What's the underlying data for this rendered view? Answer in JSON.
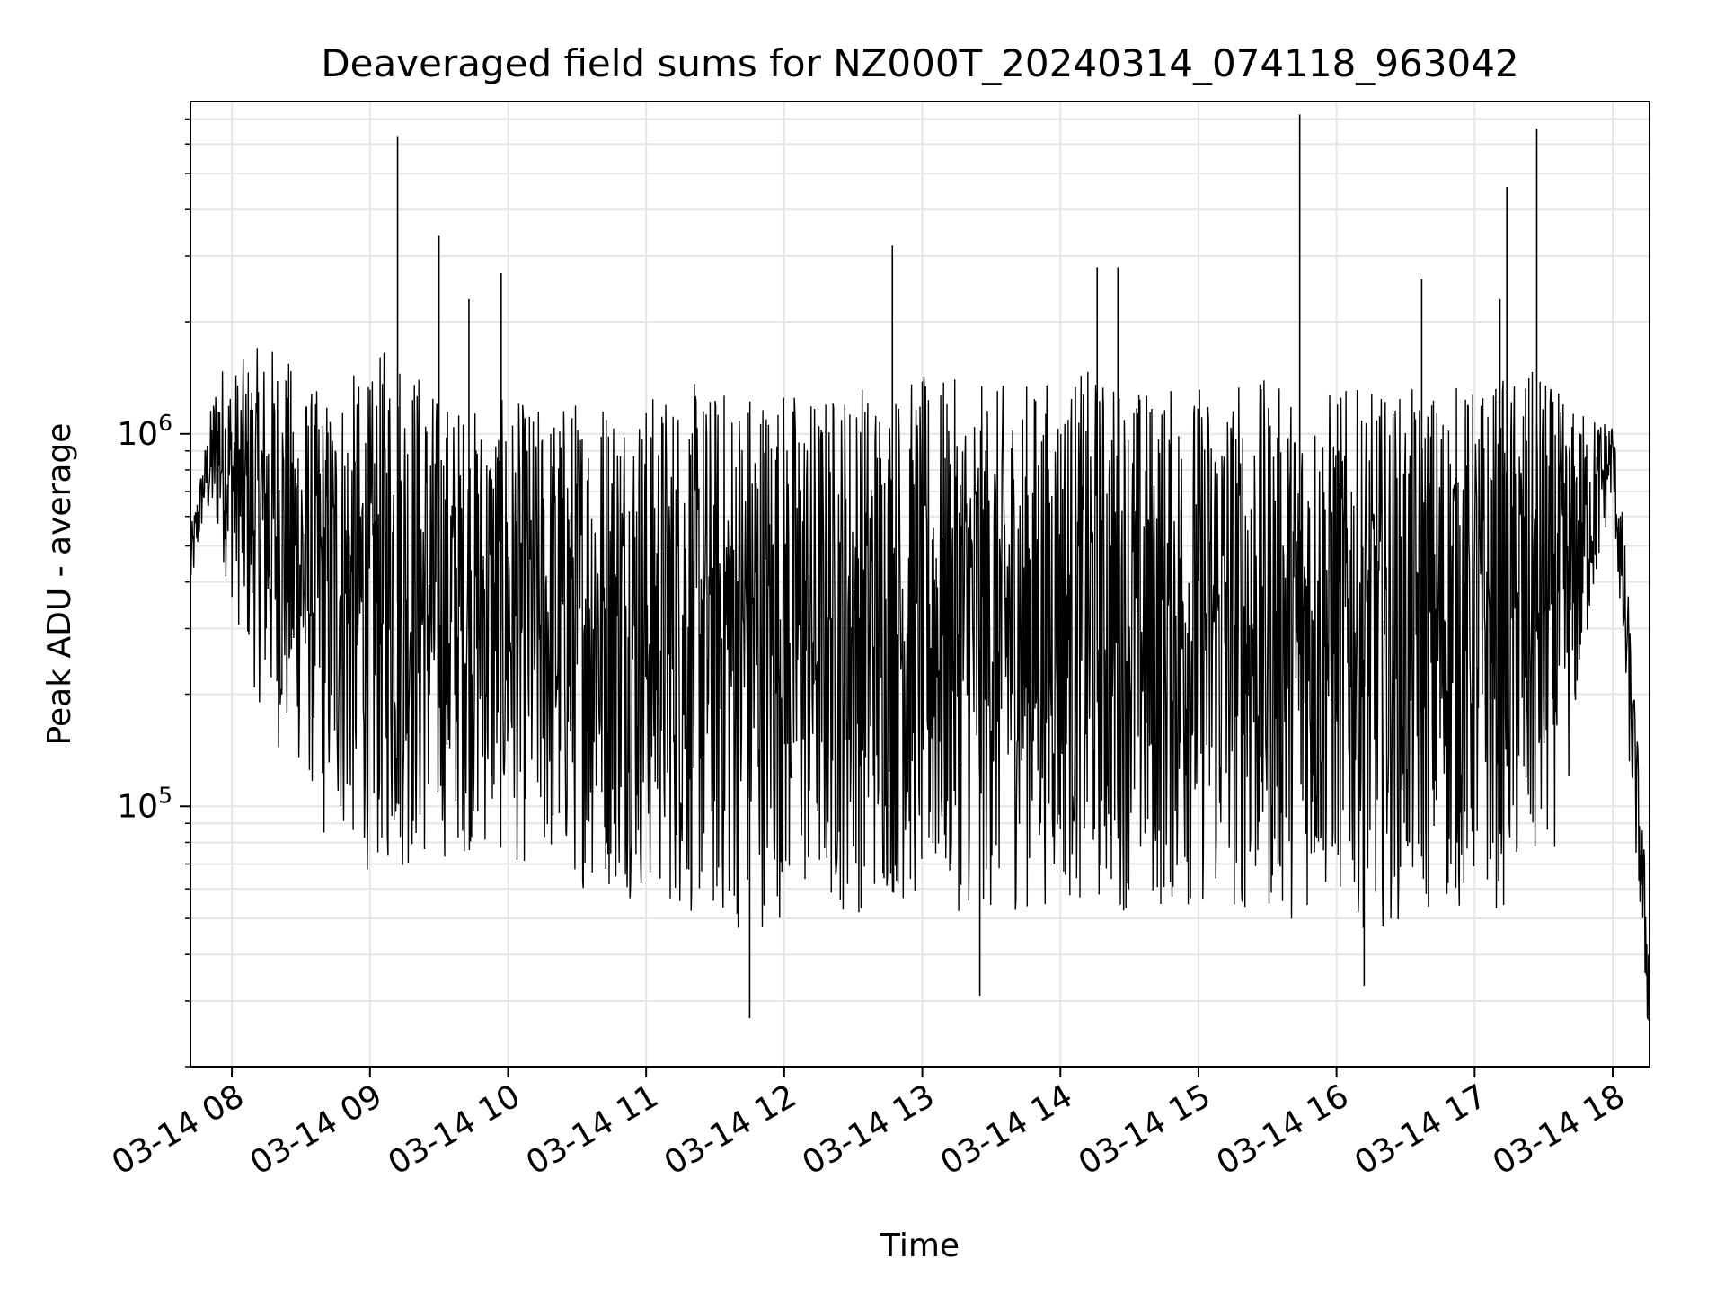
{
  "chart_data": {
    "type": "line",
    "title": "Deaveraged field sums for NZ000T_20240314_074118_963042",
    "xlabel": "Time",
    "ylabel": "Peak ADU - average",
    "yscale": "log",
    "ylim": [
      20000,
      7800000
    ],
    "xlim": [
      "2024-03-14 07:42",
      "2024-03-14 18:16"
    ],
    "grid": true,
    "line_color": "#000000",
    "x_ticks": [
      {
        "value": "2024-03-14 08:00",
        "label": "03-14 08"
      },
      {
        "value": "2024-03-14 09:00",
        "label": "03-14 09"
      },
      {
        "value": "2024-03-14 10:00",
        "label": "03-14 10"
      },
      {
        "value": "2024-03-14 11:00",
        "label": "03-14 11"
      },
      {
        "value": "2024-03-14 12:00",
        "label": "03-14 12"
      },
      {
        "value": "2024-03-14 13:00",
        "label": "03-14 13"
      },
      {
        "value": "2024-03-14 14:00",
        "label": "03-14 14"
      },
      {
        "value": "2024-03-14 15:00",
        "label": "03-14 15"
      },
      {
        "value": "2024-03-14 16:00",
        "label": "03-14 16"
      },
      {
        "value": "2024-03-14 17:00",
        "label": "03-14 17"
      },
      {
        "value": "2024-03-14 18:00",
        "label": "03-14 18"
      }
    ],
    "y_ticks": [
      {
        "value": 100000,
        "base": "10",
        "exp": "5"
      },
      {
        "value": 1000000,
        "base": "10",
        "exp": "6"
      }
    ],
    "series": [
      {
        "x": [
          "2024-03-14 07:42",
          "2024-03-14 07:48",
          "2024-03-14 07:54",
          "2024-03-14 08:00",
          "2024-03-14 08:10",
          "2024-03-14 08:20",
          "2024-03-14 08:30",
          "2024-03-14 08:40",
          "2024-03-14 08:50",
          "2024-03-14 09:00",
          "2024-03-14 09:10",
          "2024-03-14 09:20",
          "2024-03-14 09:30",
          "2024-03-14 09:45",
          "2024-03-14 10:00",
          "2024-03-14 10:15",
          "2024-03-14 10:30",
          "2024-03-14 10:45",
          "2024-03-14 11:00",
          "2024-03-14 11:15",
          "2024-03-14 11:30",
          "2024-03-14 11:45",
          "2024-03-14 12:00",
          "2024-03-14 12:15",
          "2024-03-14 12:30",
          "2024-03-14 12:45",
          "2024-03-14 13:00",
          "2024-03-14 13:15",
          "2024-03-14 13:30",
          "2024-03-14 13:45",
          "2024-03-14 14:00",
          "2024-03-14 14:15",
          "2024-03-14 14:30",
          "2024-03-14 14:45",
          "2024-03-14 15:00",
          "2024-03-14 15:15",
          "2024-03-14 15:30",
          "2024-03-14 15:45",
          "2024-03-14 16:00",
          "2024-03-14 16:15",
          "2024-03-14 16:30",
          "2024-03-14 16:45",
          "2024-03-14 17:00",
          "2024-03-14 17:15",
          "2024-03-14 17:30",
          "2024-03-14 17:40",
          "2024-03-14 17:50",
          "2024-03-14 18:00",
          "2024-03-14 18:05",
          "2024-03-14 18:10",
          "2024-03-14 18:13",
          "2024-03-14 18:16"
        ],
        "upper": [
          550000,
          900000,
          1600000,
          1500000,
          1700000,
          1800000,
          1400000,
          1300000,
          1500000,
          1400000,
          2000000,
          1600000,
          1300000,
          1200000,
          1250000,
          1200000,
          1300000,
          1400000,
          1300000,
          1400000,
          1350000,
          1450000,
          1400000,
          1300000,
          1450000,
          1400000,
          1450000,
          1400000,
          1350000,
          1400000,
          1450000,
          1500000,
          1400000,
          1350000,
          1400000,
          1450000,
          1400000,
          1300000,
          1350000,
          1300000,
          1300000,
          1400000,
          1350000,
          1450000,
          1500000,
          1200000,
          1150000,
          1100000,
          550000,
          180000,
          90000,
          45000
        ],
        "lower": [
          350000,
          600000,
          500000,
          350000,
          200000,
          140000,
          120000,
          90000,
          75000,
          65000,
          65000,
          65000,
          70000,
          75000,
          70000,
          65000,
          60000,
          58000,
          55000,
          50000,
          45000,
          45000,
          50000,
          52000,
          50000,
          55000,
          50000,
          52000,
          50000,
          52000,
          55000,
          52000,
          52000,
          50000,
          52000,
          50000,
          48000,
          50000,
          55000,
          45000,
          50000,
          50000,
          52000,
          52000,
          60000,
          100000,
          300000,
          700000,
          200000,
          70000,
          40000,
          20000
        ],
        "spikes": [
          {
            "x": "2024-03-14 09:12",
            "y": 6300000
          },
          {
            "x": "2024-03-14 09:30",
            "y": 3400000
          },
          {
            "x": "2024-03-14 09:43",
            "y": 2300000
          },
          {
            "x": "2024-03-14 09:57",
            "y": 2700000
          },
          {
            "x": "2024-03-14 12:47",
            "y": 3200000
          },
          {
            "x": "2024-03-14 14:16",
            "y": 2800000
          },
          {
            "x": "2024-03-14 14:25",
            "y": 2800000
          },
          {
            "x": "2024-03-14 15:44",
            "y": 7200000
          },
          {
            "x": "2024-03-14 16:37",
            "y": 2600000
          },
          {
            "x": "2024-03-14 17:11",
            "y": 2300000
          },
          {
            "x": "2024-03-14 17:14",
            "y": 4600000
          },
          {
            "x": "2024-03-14 17:27",
            "y": 6600000
          },
          {
            "x": "2024-03-14 11:45",
            "y": 27000
          },
          {
            "x": "2024-03-14 13:25",
            "y": 31000
          },
          {
            "x": "2024-03-14 16:12",
            "y": 33000
          },
          {
            "x": "2024-03-14 08:40",
            "y": 85000
          }
        ]
      }
    ]
  }
}
